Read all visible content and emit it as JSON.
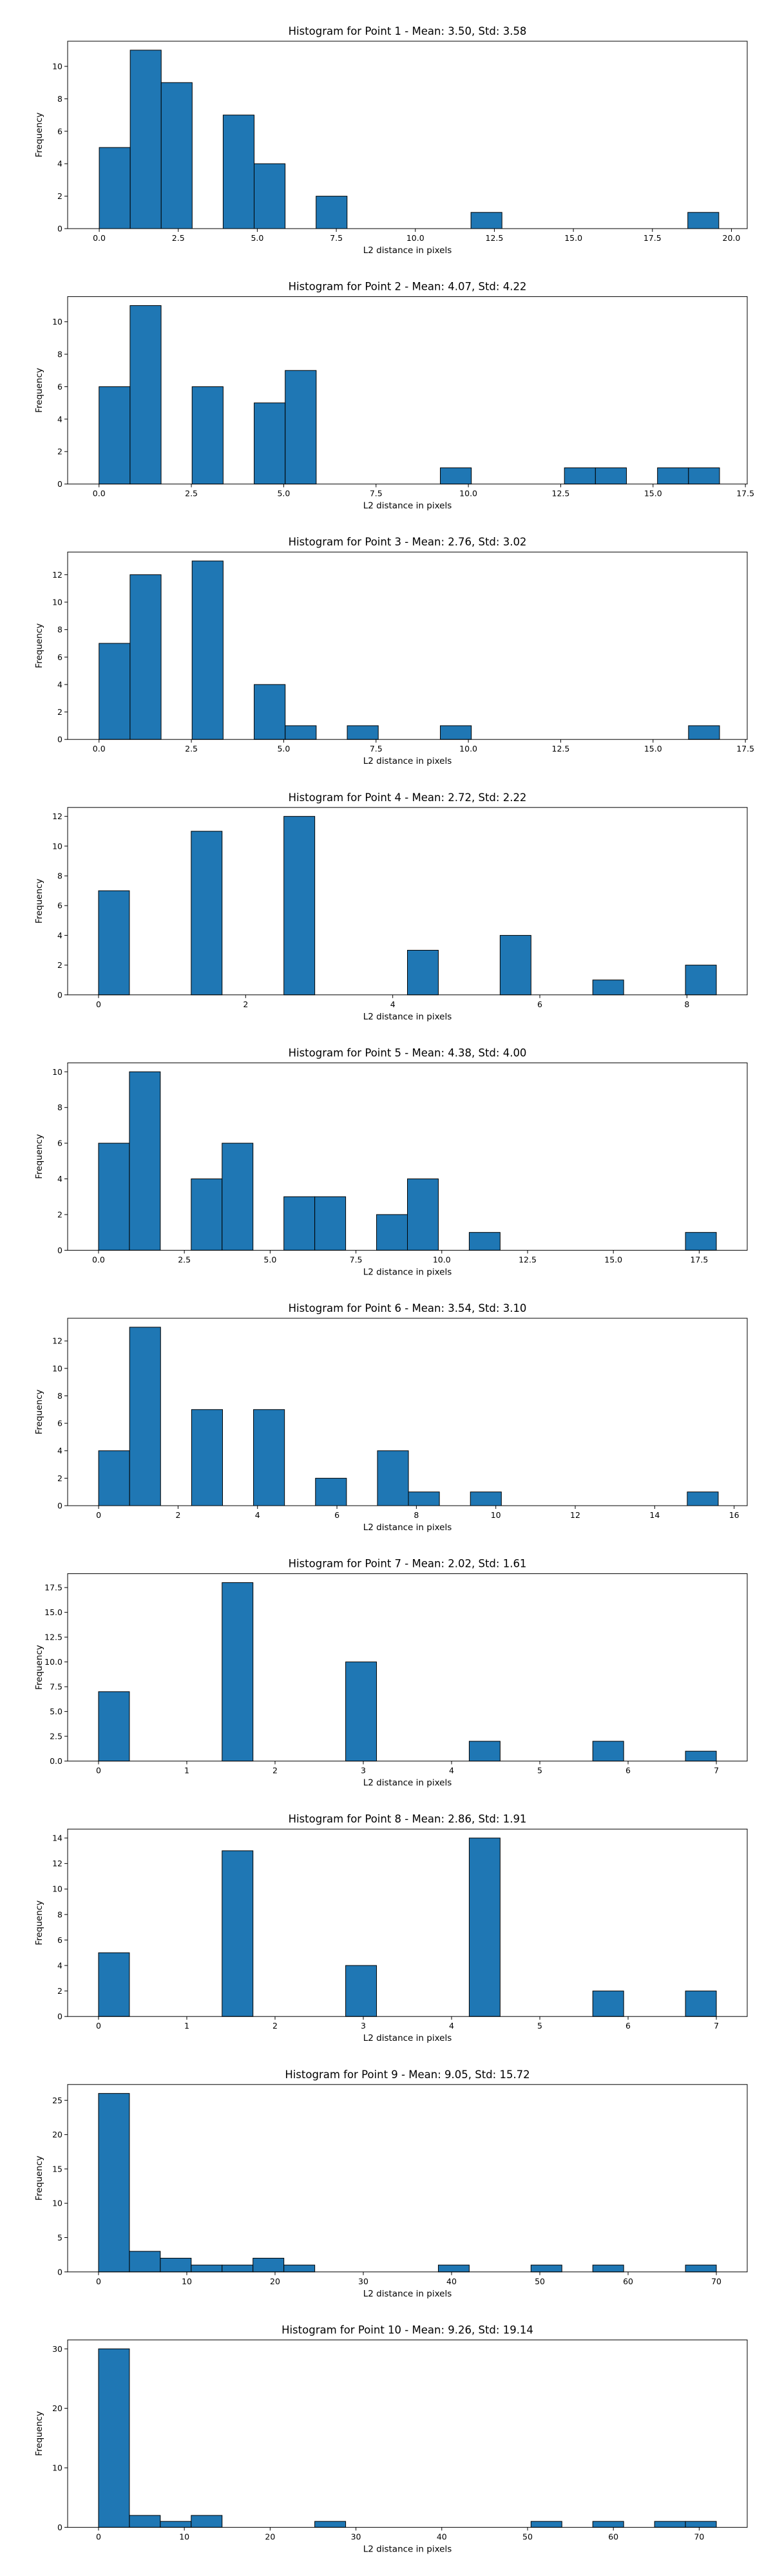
{
  "style": {
    "bar_color": "#1f77b4",
    "edge_color": "#000000",
    "background": "#ffffff"
  },
  "chart_data": [
    {
      "type": "bar",
      "title": "Histogram for Point 1 - Mean: 3.50, Std: 3.58",
      "xlabel": "L2 distance in pixels",
      "ylabel": "Frequency",
      "xlim": [
        -1.0,
        20.5
      ],
      "ylim": [
        0,
        11.55
      ],
      "xticks": [
        0.0,
        2.5,
        5.0,
        7.5,
        10.0,
        12.5,
        15.0,
        17.5,
        20.0
      ],
      "xtick_labels": [
        "0.0",
        "2.5",
        "5.0",
        "7.5",
        "10.0",
        "12.5",
        "15.0",
        "17.5",
        "20.0"
      ],
      "yticks": [
        0,
        2,
        4,
        6,
        8,
        10
      ],
      "ytick_labels": [
        "0",
        "2",
        "4",
        "6",
        "8",
        "10"
      ],
      "bin_edges": [
        0.0,
        0.98,
        1.96,
        2.94,
        3.92,
        4.9,
        5.88,
        6.86,
        7.84,
        8.82,
        9.8,
        10.78,
        11.76,
        12.74,
        13.72,
        14.7,
        15.68,
        16.66,
        17.64,
        18.62,
        19.6
      ],
      "values": [
        5,
        11,
        9,
        0,
        7,
        4,
        0,
        2,
        0,
        0,
        0,
        0,
        1,
        0,
        0,
        0,
        0,
        0,
        0,
        1
      ]
    },
    {
      "type": "bar",
      "title": "Histogram for Point 2 - Mean: 4.07, Std: 4.22",
      "xlabel": "L2 distance in pixels",
      "ylabel": "Frequency",
      "xlim": [
        -0.85,
        17.55
      ],
      "ylim": [
        0,
        11.55
      ],
      "xticks": [
        0.0,
        2.5,
        5.0,
        7.5,
        10.0,
        12.5,
        15.0,
        17.5
      ],
      "xtick_labels": [
        "0.0",
        "2.5",
        "5.0",
        "7.5",
        "10.0",
        "12.5",
        "15.0",
        "17.5"
      ],
      "yticks": [
        0,
        2,
        4,
        6,
        8,
        10
      ],
      "ytick_labels": [
        "0",
        "2",
        "4",
        "6",
        "8",
        "10"
      ],
      "bin_edges": [
        0.0,
        0.84,
        1.68,
        2.52,
        3.36,
        4.2,
        5.04,
        5.88,
        6.72,
        7.56,
        8.4,
        9.24,
        10.08,
        10.92,
        11.76,
        12.6,
        13.44,
        14.28,
        15.12,
        15.96,
        16.8
      ],
      "values": [
        6,
        11,
        0,
        6,
        0,
        5,
        7,
        0,
        0,
        0,
        0,
        1,
        0,
        0,
        0,
        1,
        1,
        0,
        1,
        1
      ]
    },
    {
      "type": "bar",
      "title": "Histogram for Point 3 - Mean: 2.76, Std: 3.02",
      "xlabel": "L2 distance in pixels",
      "ylabel": "Frequency",
      "xlim": [
        -0.85,
        17.55
      ],
      "ylim": [
        0,
        13.65
      ],
      "xticks": [
        0.0,
        2.5,
        5.0,
        7.5,
        10.0,
        12.5,
        15.0,
        17.5
      ],
      "xtick_labels": [
        "0.0",
        "2.5",
        "5.0",
        "7.5",
        "10.0",
        "12.5",
        "15.0",
        "17.5"
      ],
      "yticks": [
        0,
        2,
        4,
        6,
        8,
        10,
        12
      ],
      "ytick_labels": [
        "0",
        "2",
        "4",
        "6",
        "8",
        "10",
        "12"
      ],
      "bin_edges": [
        0.0,
        0.84,
        1.68,
        2.52,
        3.36,
        4.2,
        5.04,
        5.88,
        6.72,
        7.56,
        8.4,
        9.24,
        10.08,
        10.92,
        11.76,
        12.6,
        13.44,
        14.28,
        15.12,
        15.96,
        16.8
      ],
      "values": [
        7,
        12,
        0,
        13,
        0,
        4,
        1,
        0,
        1,
        0,
        0,
        1,
        0,
        0,
        0,
        0,
        0,
        0,
        0,
        1
      ]
    },
    {
      "type": "bar",
      "title": "Histogram for Point 4 - Mean: 2.72, Std: 2.22",
      "xlabel": "L2 distance in pixels",
      "ylabel": "Frequency",
      "xlim": [
        -0.42,
        8.82
      ],
      "ylim": [
        0,
        12.6
      ],
      "xticks": [
        0,
        2,
        4,
        6,
        8
      ],
      "xtick_labels": [
        "0",
        "2",
        "4",
        "6",
        "8"
      ],
      "yticks": [
        0,
        2,
        4,
        6,
        8,
        10,
        12
      ],
      "ytick_labels": [
        "0",
        "2",
        "4",
        "6",
        "8",
        "10",
        "12"
      ],
      "bin_edges": [
        0.0,
        0.42,
        0.84,
        1.26,
        1.68,
        2.1,
        2.52,
        2.94,
        3.36,
        3.78,
        4.2,
        4.62,
        5.04,
        5.46,
        5.88,
        6.3,
        6.72,
        7.14,
        7.56,
        7.98,
        8.4
      ],
      "values": [
        7,
        0,
        0,
        11,
        0,
        0,
        12,
        0,
        0,
        0,
        3,
        0,
        0,
        4,
        0,
        0,
        1,
        0,
        0,
        2
      ]
    },
    {
      "type": "bar",
      "title": "Histogram for Point 5 - Mean: 4.38, Std: 4.00",
      "xlabel": "L2 distance in pixels",
      "ylabel": "Frequency",
      "xlim": [
        -0.9,
        18.9
      ],
      "ylim": [
        0,
        10.5
      ],
      "xticks": [
        0.0,
        2.5,
        5.0,
        7.5,
        10.0,
        12.5,
        15.0,
        17.5
      ],
      "xtick_labels": [
        "0.0",
        "2.5",
        "5.0",
        "7.5",
        "10.0",
        "12.5",
        "15.0",
        "17.5"
      ],
      "yticks": [
        0,
        2,
        4,
        6,
        8,
        10
      ],
      "ytick_labels": [
        "0",
        "2",
        "4",
        "6",
        "8",
        "10"
      ],
      "bin_edges": [
        0.0,
        0.9,
        1.8,
        2.7,
        3.6,
        4.5,
        5.4,
        6.3,
        7.2,
        8.1,
        9.0,
        9.9,
        10.8,
        11.7,
        12.6,
        13.5,
        14.4,
        15.3,
        16.2,
        17.1,
        18.0
      ],
      "values": [
        6,
        10,
        0,
        4,
        6,
        0,
        3,
        3,
        0,
        2,
        4,
        0,
        1,
        0,
        0,
        0,
        0,
        0,
        0,
        1
      ]
    },
    {
      "type": "bar",
      "title": "Histogram for Point 6 - Mean: 3.54, Std: 3.10",
      "xlabel": "L2 distance in pixels",
      "ylabel": "Frequency",
      "xlim": [
        -0.78,
        16.33
      ],
      "ylim": [
        0,
        13.65
      ],
      "xticks": [
        0,
        2,
        4,
        6,
        8,
        10,
        12,
        14,
        16
      ],
      "xtick_labels": [
        "0",
        "2",
        "4",
        "6",
        "8",
        "10",
        "12",
        "14",
        "16"
      ],
      "yticks": [
        0,
        2,
        4,
        6,
        8,
        10,
        12
      ],
      "ytick_labels": [
        "0",
        "2",
        "4",
        "6",
        "8",
        "10",
        "12"
      ],
      "bin_edges": [
        0.0,
        0.78,
        1.56,
        2.34,
        3.12,
        3.9,
        4.68,
        5.46,
        6.24,
        7.02,
        7.8,
        8.58,
        9.36,
        10.14,
        10.92,
        11.7,
        12.48,
        13.26,
        14.04,
        14.82,
        15.6
      ],
      "values": [
        4,
        13,
        0,
        7,
        0,
        7,
        0,
        2,
        0,
        4,
        1,
        0,
        1,
        0,
        0,
        0,
        0,
        0,
        0,
        1
      ]
    },
    {
      "type": "bar",
      "title": "Histogram for Point 7 - Mean: 2.02, Std: 1.61",
      "xlabel": "L2 distance in pixels",
      "ylabel": "Frequency",
      "xlim": [
        -0.35,
        7.35
      ],
      "ylim": [
        0,
        18.9
      ],
      "xticks": [
        0,
        1,
        2,
        3,
        4,
        5,
        6,
        7
      ],
      "xtick_labels": [
        "0",
        "1",
        "2",
        "3",
        "4",
        "5",
        "6",
        "7"
      ],
      "yticks": [
        0.0,
        2.5,
        5.0,
        7.5,
        10.0,
        12.5,
        15.0,
        17.5
      ],
      "ytick_labels": [
        "0.0",
        "2.5",
        "5.0",
        "7.5",
        "10.0",
        "12.5",
        "15.0",
        "17.5"
      ],
      "bin_edges": [
        0.0,
        0.35,
        0.7,
        1.05,
        1.4,
        1.75,
        2.1,
        2.45,
        2.8,
        3.15,
        3.5,
        3.85,
        4.2,
        4.55,
        4.9,
        5.25,
        5.6,
        5.95,
        6.3,
        6.65,
        7.0
      ],
      "values": [
        7,
        0,
        0,
        0,
        18,
        0,
        0,
        0,
        10,
        0,
        0,
        0,
        2,
        0,
        0,
        0,
        2,
        0,
        0,
        1
      ]
    },
    {
      "type": "bar",
      "title": "Histogram for Point 8 - Mean: 2.86, Std: 1.91",
      "xlabel": "L2 distance in pixels",
      "ylabel": "Frequency",
      "xlim": [
        -0.35,
        7.35
      ],
      "ylim": [
        0,
        14.7
      ],
      "xticks": [
        0,
        1,
        2,
        3,
        4,
        5,
        6,
        7
      ],
      "xtick_labels": [
        "0",
        "1",
        "2",
        "3",
        "4",
        "5",
        "6",
        "7"
      ],
      "yticks": [
        0,
        2,
        4,
        6,
        8,
        10,
        12,
        14
      ],
      "ytick_labels": [
        "0",
        "2",
        "4",
        "6",
        "8",
        "10",
        "12",
        "14"
      ],
      "bin_edges": [
        0.0,
        0.35,
        0.7,
        1.05,
        1.4,
        1.75,
        2.1,
        2.45,
        2.8,
        3.15,
        3.5,
        3.85,
        4.2,
        4.55,
        4.9,
        5.25,
        5.6,
        5.95,
        6.3,
        6.65,
        7.0
      ],
      "values": [
        5,
        0,
        0,
        0,
        13,
        0,
        0,
        0,
        4,
        0,
        0,
        0,
        14,
        0,
        0,
        0,
        2,
        0,
        0,
        2
      ]
    },
    {
      "type": "bar",
      "title": "Histogram for Point 9 - Mean: 9.05, Std: 15.72",
      "xlabel": "L2 distance in pixels",
      "ylabel": "Frequency",
      "xlim": [
        -3.5,
        73.5
      ],
      "ylim": [
        0,
        27.3
      ],
      "xticks": [
        0,
        10,
        20,
        30,
        40,
        50,
        60,
        70
      ],
      "xtick_labels": [
        "0",
        "10",
        "20",
        "30",
        "40",
        "50",
        "60",
        "70"
      ],
      "yticks": [
        0,
        5,
        10,
        15,
        20,
        25
      ],
      "ytick_labels": [
        "0",
        "5",
        "10",
        "15",
        "20",
        "25"
      ],
      "bin_edges": [
        0.0,
        3.5,
        7.0,
        10.5,
        14.0,
        17.5,
        21.0,
        24.5,
        28.0,
        31.5,
        35.0,
        38.5,
        42.0,
        45.5,
        49.0,
        52.5,
        56.0,
        59.5,
        63.0,
        66.5,
        70.0
      ],
      "values": [
        26,
        3,
        2,
        1,
        1,
        2,
        1,
        0,
        0,
        0,
        0,
        1,
        0,
        0,
        1,
        0,
        1,
        0,
        0,
        1
      ]
    },
    {
      "type": "bar",
      "title": "Histogram for Point 10 - Mean: 9.26, Std: 19.14",
      "xlabel": "L2 distance in pixels",
      "ylabel": "Frequency",
      "xlim": [
        -3.6,
        75.6
      ],
      "ylim": [
        0,
        31.5
      ],
      "xticks": [
        0,
        10,
        20,
        30,
        40,
        50,
        60,
        70
      ],
      "xtick_labels": [
        "0",
        "10",
        "20",
        "30",
        "40",
        "50",
        "60",
        "70"
      ],
      "yticks": [
        0,
        10,
        20,
        30
      ],
      "ytick_labels": [
        "0",
        "10",
        "20",
        "30"
      ],
      "bin_edges": [
        0.0,
        3.6,
        7.2,
        10.8,
        14.4,
        18.0,
        21.6,
        25.2,
        28.8,
        32.4,
        36.0,
        39.6,
        43.2,
        46.8,
        50.4,
        54.0,
        57.6,
        61.2,
        64.8,
        68.4,
        72.0
      ],
      "values": [
        30,
        2,
        1,
        2,
        0,
        0,
        0,
        1,
        0,
        0,
        0,
        0,
        0,
        0,
        1,
        0,
        1,
        0,
        1,
        1
      ]
    }
  ]
}
